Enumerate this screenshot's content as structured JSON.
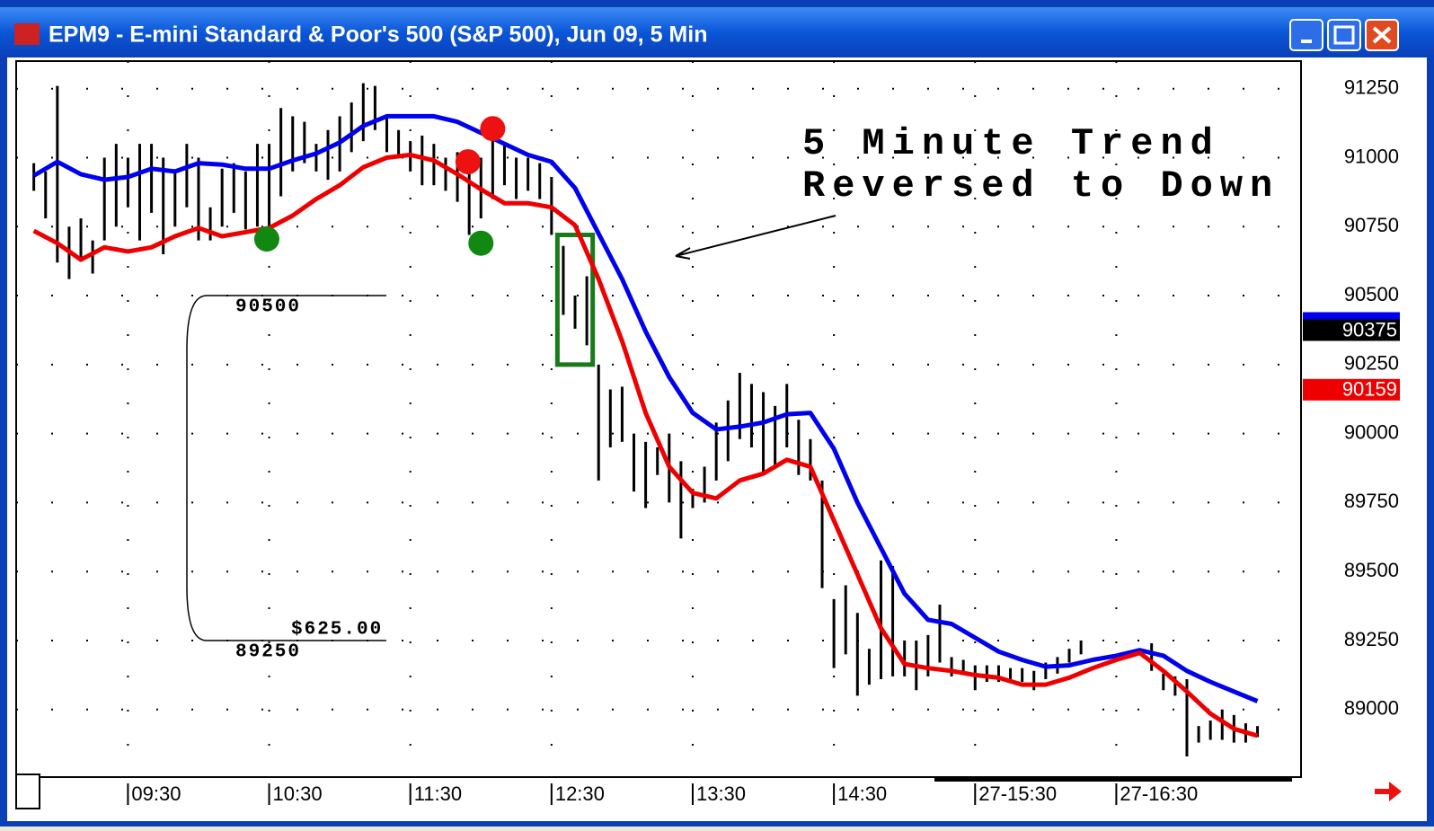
{
  "window": {
    "title": "EPM9 - E-mini Standard & Poor's 500 (S&P 500), Jun 09, 5 Min"
  },
  "chart_data": {
    "type": "ohlc",
    "xlim": [
      -9.5,
      99.7
    ],
    "ylim": [
      88755,
      91350
    ],
    "xticks": [
      {
        "value": 0,
        "label": "09:30"
      },
      {
        "value": 12,
        "label": "10:30"
      },
      {
        "value": 24,
        "label": "11:30"
      },
      {
        "value": 36,
        "label": "12:30"
      },
      {
        "value": 48,
        "label": "13:30"
      },
      {
        "value": 60,
        "label": "14:30"
      },
      {
        "value": 72,
        "label": "27-15:30"
      },
      {
        "value": 84,
        "label": "27-16:30"
      }
    ],
    "yticks": [
      89000,
      89250,
      89500,
      89750,
      90000,
      90250,
      90500,
      90750,
      91000,
      91250
    ],
    "grid": true,
    "bar_color": "#000000",
    "bars": {
      "x": [
        -8,
        -7,
        -6,
        -5,
        -4,
        -3,
        -2,
        -1,
        0,
        1,
        2,
        3,
        4,
        5,
        6,
        7,
        8,
        9,
        10,
        11,
        12,
        13,
        14,
        15,
        16,
        17,
        18,
        19,
        20,
        21,
        22,
        23,
        24,
        25,
        26,
        27,
        28,
        29,
        30,
        31,
        32,
        33,
        34,
        35,
        36,
        37,
        38,
        39,
        40,
        41,
        42,
        43,
        44,
        45,
        46,
        47,
        48,
        49,
        50,
        51,
        52,
        53,
        54,
        55,
        56,
        57,
        58,
        59,
        60,
        61,
        62,
        63,
        64,
        65,
        66,
        67,
        68,
        69,
        70,
        71,
        72,
        73,
        74,
        75,
        76,
        77,
        78,
        79,
        80,
        81,
        87,
        88,
        89,
        90,
        91,
        92,
        93,
        94,
        95,
        96
      ],
      "high": [
        90980,
        90950,
        91260,
        90750,
        90780,
        90700,
        91000,
        91050,
        91000,
        91050,
        91050,
        91000,
        90950,
        91050,
        91000,
        90820,
        90960,
        90980,
        90950,
        91050,
        91050,
        91180,
        91150,
        91130,
        91050,
        91100,
        91150,
        91200,
        91270,
        91260,
        91150,
        91100,
        91060,
        91080,
        91050,
        91000,
        91020,
        90980,
        91000,
        91080,
        91050,
        91000,
        91000,
        90980,
        90930,
        90680,
        90500,
        90570,
        90250,
        90160,
        90170,
        90000,
        89970,
        89950,
        90000,
        89900,
        89800,
        89880,
        90040,
        90120,
        90220,
        90180,
        90150,
        90100,
        90180,
        90050,
        89980,
        89830,
        89400,
        89450,
        89350,
        89220,
        89540,
        89520,
        89250,
        89250,
        89270,
        89380,
        89190,
        89180,
        89160,
        89160,
        89160,
        89150,
        89150,
        89140,
        89170,
        89190,
        89220,
        89250,
        89240,
        89130,
        89120,
        89110,
        88940,
        88960,
        89000,
        88980,
        88950,
        88940
      ],
      "low": [
        90880,
        90780,
        90620,
        90560,
        90640,
        90580,
        90700,
        90750,
        90820,
        90700,
        90800,
        90650,
        90750,
        90820,
        90700,
        90700,
        90750,
        90800,
        90740,
        90750,
        90750,
        90860,
        90950,
        90980,
        90950,
        90920,
        90950,
        91020,
        91060,
        91100,
        91020,
        91000,
        90950,
        90900,
        90900,
        90880,
        90840,
        90720,
        90780,
        90850,
        90900,
        90850,
        90880,
        90850,
        90720,
        90430,
        90380,
        90320,
        89830,
        89950,
        89970,
        89790,
        89730,
        89850,
        89750,
        89620,
        89730,
        89750,
        89830,
        89900,
        89980,
        89950,
        89850,
        89880,
        89950,
        89850,
        89830,
        89440,
        89150,
        89200,
        89050,
        89090,
        89110,
        89120,
        89120,
        89070,
        89120,
        89170,
        89120,
        89130,
        89070,
        89100,
        89100,
        89100,
        89100,
        89070,
        89110,
        89130,
        89170,
        89200,
        89140,
        89070,
        89050,
        88830,
        88880,
        88890,
        88890,
        88880,
        88880,
        88900
      ]
    },
    "series": [
      {
        "color": "#0000ee",
        "x": [
          -8,
          -6,
          -4,
          -2,
          0,
          2,
          4,
          6,
          8,
          10,
          12,
          14,
          16,
          18,
          20,
          22,
          24,
          26,
          28,
          30,
          32,
          34,
          36,
          38,
          40,
          42,
          44,
          46,
          48,
          50,
          52,
          54,
          56,
          58,
          60,
          62,
          64,
          66,
          68,
          70,
          72,
          74,
          76,
          78,
          80,
          82,
          84,
          86,
          88,
          90,
          92,
          94,
          96
        ],
        "values": [
          90935,
          90985,
          90940,
          90920,
          90930,
          90960,
          90950,
          90980,
          90975,
          90960,
          90960,
          90990,
          91015,
          91055,
          91115,
          91150,
          91150,
          91150,
          91130,
          91090,
          91050,
          91010,
          90985,
          90890,
          90725,
          90560,
          90370,
          90205,
          90075,
          90015,
          90025,
          90040,
          90070,
          90075,
          89945,
          89750,
          89585,
          89420,
          89325,
          89310,
          89260,
          89210,
          89180,
          89155,
          89160,
          89180,
          89195,
          89215,
          89195,
          89140,
          89100,
          89065,
          89030
        ]
      },
      {
        "color": "#ee0000",
        "x": [
          -8,
          -6,
          -4,
          -2,
          0,
          2,
          4,
          6,
          8,
          10,
          12,
          14,
          16,
          18,
          20,
          22,
          24,
          26,
          28,
          30,
          32,
          34,
          36,
          38,
          40,
          42,
          44,
          46,
          48,
          50,
          52,
          54,
          56,
          58,
          60,
          62,
          64,
          66,
          68,
          70,
          72,
          74,
          76,
          78,
          80,
          82,
          84,
          86,
          88,
          90,
          92,
          94,
          96
        ],
        "values": [
          90735,
          90690,
          90630,
          90675,
          90660,
          90675,
          90715,
          90745,
          90715,
          90730,
          90745,
          90790,
          90850,
          90900,
          90965,
          91000,
          91010,
          90990,
          90940,
          90885,
          90835,
          90835,
          90820,
          90755,
          90560,
          90335,
          90075,
          89880,
          89785,
          89765,
          89830,
          89855,
          89905,
          89880,
          89685,
          89490,
          89295,
          89165,
          89150,
          89140,
          89125,
          89115,
          89090,
          89090,
          89115,
          89150,
          89180,
          89205,
          89140,
          89065,
          88985,
          88930,
          88905
        ]
      }
    ],
    "markers": [
      {
        "x": 11.8,
        "y": 90705,
        "color": "#118811"
      },
      {
        "x": 30,
        "y": 90690,
        "color": "#118811"
      },
      {
        "x": 31,
        "y": 91105,
        "color": "#ee1111"
      },
      {
        "x": 28.9,
        "y": 90985,
        "color": "#ee1111"
      }
    ],
    "last_prices": [
      {
        "value": 90375,
        "color": "#000000"
      },
      {
        "value": 90159,
        "color": "#ee0000"
      }
    ],
    "annotation": {
      "lines": [
        "5 Minute Trend",
        "Reversed to Down"
      ]
    },
    "range": {
      "top": {
        "value": 90500,
        "label": "90500"
      },
      "bottom": {
        "value": 89250,
        "label": "89250"
      },
      "label": "$625.00"
    },
    "box": {
      "x": [
        36.5,
        39.5
      ],
      "y": [
        90250,
        90720
      ],
      "color": "#1a7a1a"
    }
  }
}
